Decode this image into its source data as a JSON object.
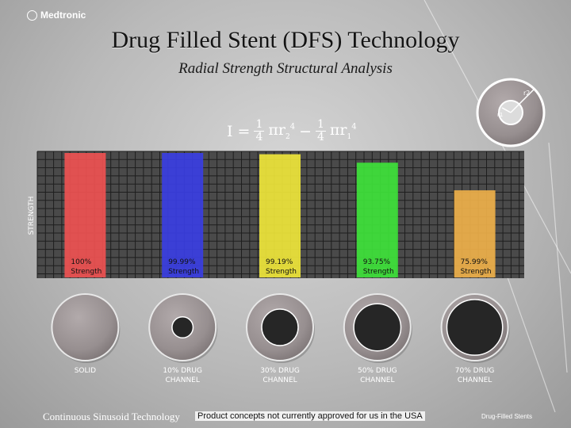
{
  "header": {
    "brand": "Medtronic",
    "title": "Drug Filled Stent (DFS) Technology",
    "subtitle": "Radial Strength Structural Analysis"
  },
  "formula": {
    "lhs": "I =",
    "term1_num": "1",
    "term1_den": "4",
    "term1_sym": "πr",
    "term1_sub": "2",
    "term1_exp": "4",
    "minus": "−",
    "term2_num": "1",
    "term2_den": "4",
    "term2_sym": "πr",
    "term2_sub": "1",
    "term2_exp": "4"
  },
  "diagram": {
    "r1_label": "r1",
    "r2_label": "r2"
  },
  "chart_data": {
    "type": "bar",
    "ylabel": "STRENGTH",
    "xlabel": "",
    "ylim": [
      0,
      100
    ],
    "grid": true,
    "categories": [
      "SOLID",
      "10% DRUG CHANNEL",
      "30% DRUG CHANNEL",
      "50% DRUG CHANNEL",
      "70% DRUG CHANNEL"
    ],
    "category_lines": [
      [
        "SOLID"
      ],
      [
        "10% DRUG",
        "CHANNEL"
      ],
      [
        "30% DRUG",
        "CHANNEL"
      ],
      [
        "50% DRUG",
        "CHANNEL"
      ],
      [
        "70% DRUG",
        "CHANNEL"
      ]
    ],
    "values": [
      100,
      99.99,
      99.19,
      93.75,
      75.99
    ],
    "value_labels": [
      "100%",
      "99.99%",
      "99.19%",
      "93.75%",
      "75.99%"
    ],
    "value_suffix": "Strength",
    "channel_fraction": [
      0,
      0.1,
      0.3,
      0.5,
      0.7
    ],
    "colors": [
      "#f25252",
      "#3a3ee6",
      "#f2e93a",
      "#3ee63a",
      "#f2b24a"
    ]
  },
  "footer": {
    "left": "Continuous Sinusoid Technology",
    "disclaimer": "Product concepts not currently approved for us in the USA",
    "right": "Drug-Filled Stents"
  }
}
